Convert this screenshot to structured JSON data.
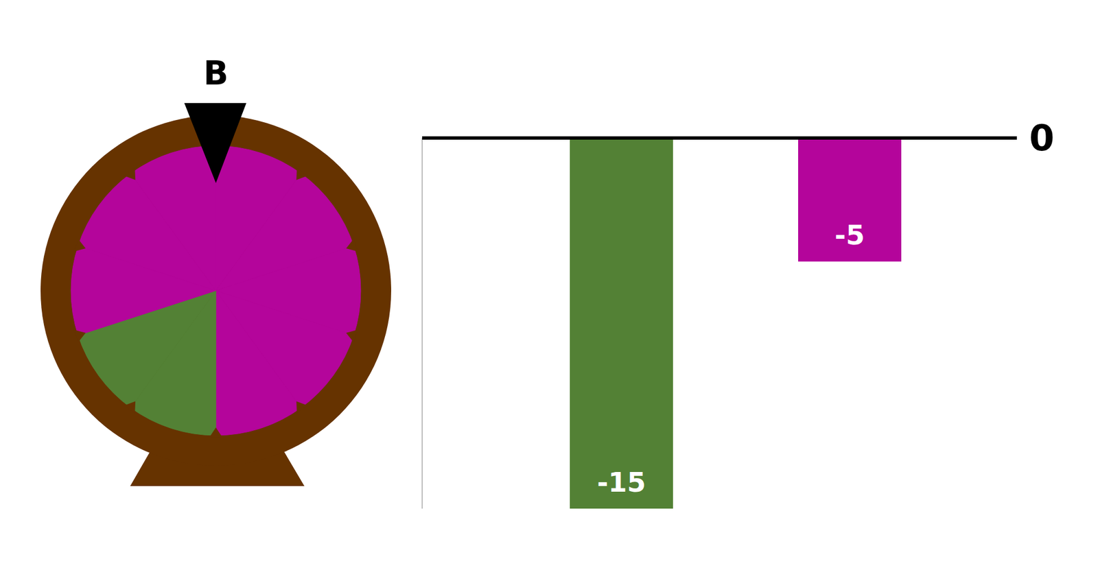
{
  "chart_data": [
    {
      "type": "pie",
      "title": "B",
      "values": [
        10,
        10,
        10,
        10,
        10,
        10,
        10,
        10,
        10,
        10
      ],
      "colors": [
        "#b4059b",
        "#b4059b",
        "#b4059b",
        "#b4059b",
        "#b4059b",
        "#538135",
        "#538135",
        "#b4059b",
        "#b4059b",
        "#b4059b"
      ]
    },
    {
      "type": "bar",
      "categories": [
        null,
        null
      ],
      "values": [
        -15,
        -5
      ],
      "colors": [
        "#538135",
        "#b4059b"
      ],
      "ylim": [
        -15,
        0
      ],
      "yticks": [
        0
      ],
      "data_labels": true,
      "tick_labels": "y"
    }
  ]
}
